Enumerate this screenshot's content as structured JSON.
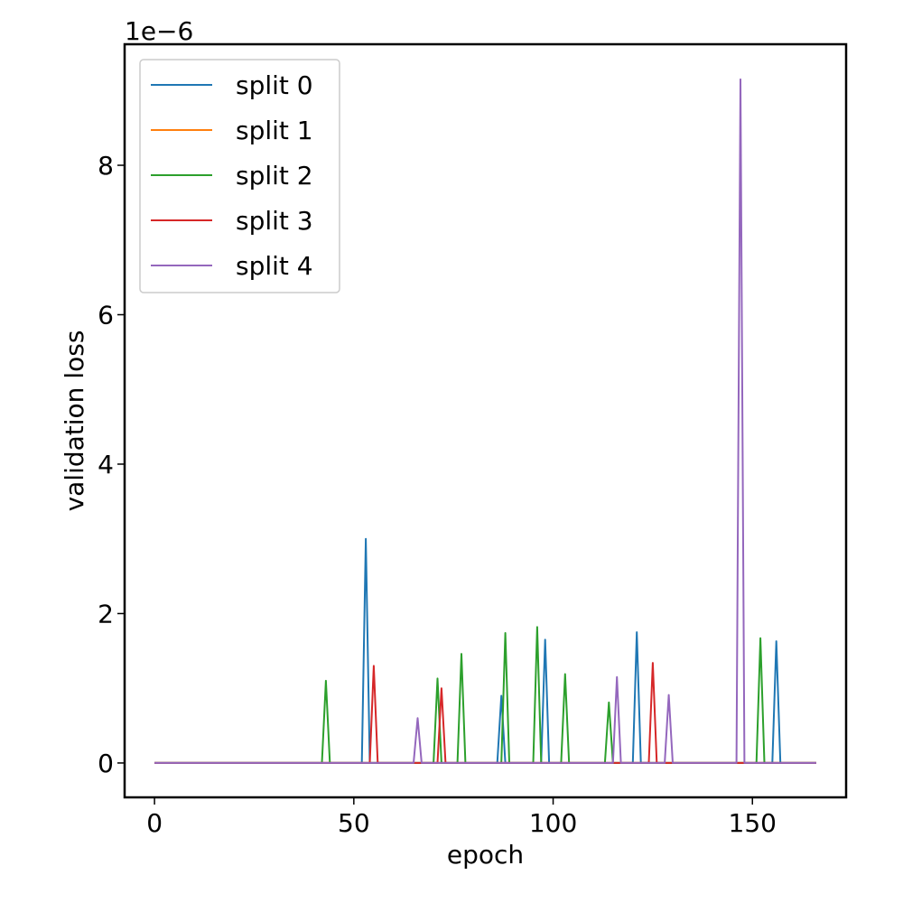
{
  "chart_data": {
    "type": "line",
    "title": "",
    "xlabel": "epoch",
    "ylabel": "validation loss",
    "y_scale_label": "1e−6",
    "xlim": [
      -7.5,
      173.5
    ],
    "ylim": [
      -0.46,
      9.62
    ],
    "x_ticks": [
      0,
      50,
      100,
      150
    ],
    "y_ticks": [
      0,
      2,
      4,
      6,
      8
    ],
    "x_tick_labels": [
      "0",
      "50",
      "100",
      "150"
    ],
    "y_tick_labels": [
      "0",
      "2",
      "4",
      "6",
      "8"
    ],
    "grid": false,
    "legend_position": "top-left",
    "n_epochs": 167,
    "series": [
      {
        "name": "split 0",
        "color": "#1f77b4",
        "spikes": [
          [
            53,
            3.0
          ],
          [
            87,
            0.9
          ],
          [
            98,
            1.65
          ],
          [
            121,
            1.75
          ],
          [
            156,
            1.63
          ]
        ]
      },
      {
        "name": "split 1",
        "color": "#ff7f0e",
        "spikes": []
      },
      {
        "name": "split 2",
        "color": "#2ca02c",
        "spikes": [
          [
            43,
            1.1
          ],
          [
            71,
            1.13
          ],
          [
            77,
            1.46
          ],
          [
            88,
            1.74
          ],
          [
            96,
            1.82
          ],
          [
            103,
            1.19
          ],
          [
            114,
            0.81
          ],
          [
            152,
            1.67
          ]
        ]
      },
      {
        "name": "split 3",
        "color": "#d62728",
        "spikes": [
          [
            55,
            1.3
          ],
          [
            72,
            1.0
          ],
          [
            125,
            1.34
          ]
        ]
      },
      {
        "name": "split 4",
        "color": "#9467bd",
        "spikes": [
          [
            66,
            0.6
          ],
          [
            116,
            1.15
          ],
          [
            129,
            0.91
          ],
          [
            147,
            9.15
          ]
        ]
      }
    ]
  }
}
